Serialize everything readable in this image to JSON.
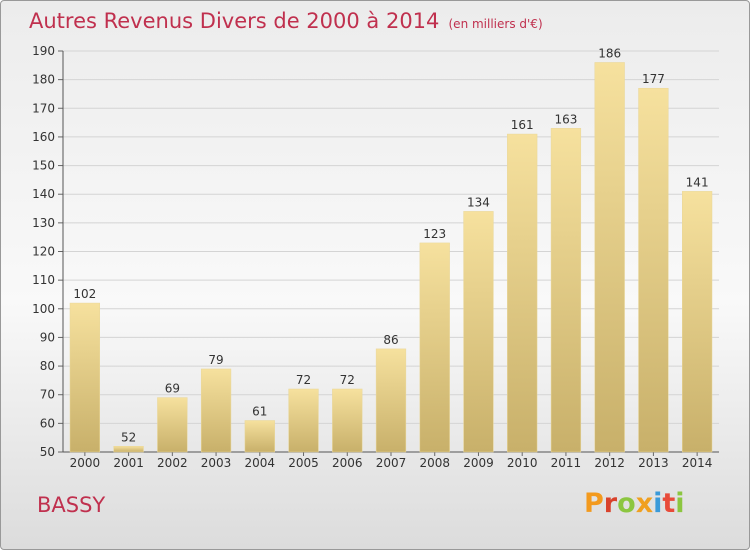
{
  "header": {
    "title": "Autres Revenus Divers de 2000 à 2014",
    "unit": "(en milliers d'€)"
  },
  "footer": {
    "place": "BASSY",
    "logo_text": "Proxiti",
    "logo_colors": [
      "#f39a1e",
      "#d9422b",
      "#8cc640",
      "#f0a020",
      "#3a9ad9",
      "#e84b3a",
      "#8cc640"
    ]
  },
  "colors": {
    "title": "#c0304e",
    "bar_light": "#f6e19e",
    "bar_dark": "#c8b06a"
  },
  "chart_data": {
    "type": "bar",
    "title": "Autres Revenus Divers de 2000 à 2014",
    "subtitle": "(en milliers d'€)",
    "categories": [
      "2000",
      "2001",
      "2002",
      "2003",
      "2004",
      "2005",
      "2006",
      "2007",
      "2008",
      "2009",
      "2010",
      "2011",
      "2012",
      "2013",
      "2014"
    ],
    "values": [
      102,
      52,
      69,
      79,
      61,
      72,
      72,
      86,
      123,
      134,
      161,
      163,
      186,
      177,
      141
    ],
    "ylim": [
      50,
      190
    ],
    "yticks": [
      50,
      60,
      70,
      80,
      90,
      100,
      110,
      120,
      130,
      140,
      150,
      160,
      170,
      180,
      190
    ],
    "grid": true,
    "legend": "none"
  }
}
